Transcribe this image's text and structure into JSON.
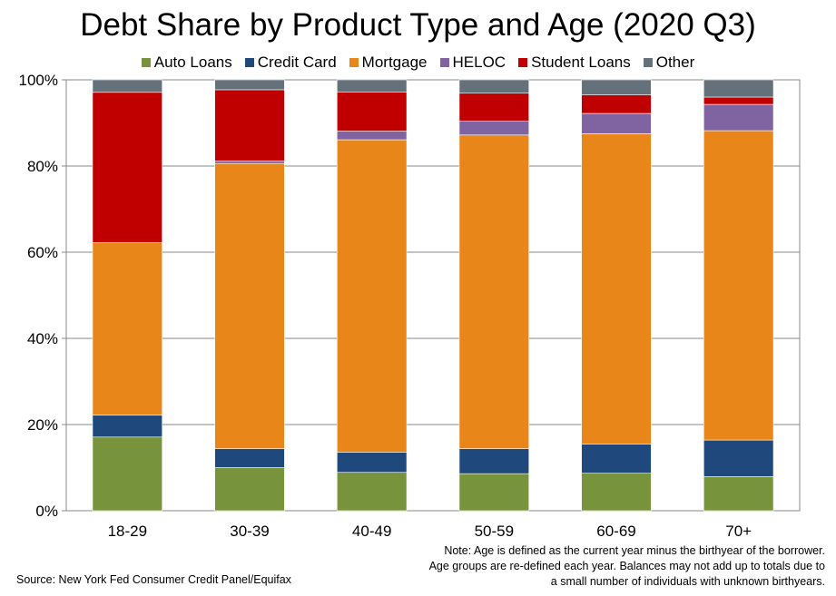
{
  "chart_data": {
    "type": "bar",
    "stacked": true,
    "title": "Debt Share by Product Type and Age (2020 Q3)",
    "xlabel": "",
    "ylabel": "",
    "ylim": [
      0,
      100
    ],
    "yticks": [
      "0%",
      "20%",
      "40%",
      "60%",
      "80%",
      "100%"
    ],
    "ytick_values": [
      0,
      20,
      40,
      60,
      80,
      100
    ],
    "grid": true,
    "legend_position": "top",
    "categories": [
      "18-29",
      "30-39",
      "40-49",
      "50-59",
      "60-69",
      "70+"
    ],
    "series": [
      {
        "name": "Auto Loans",
        "color": "#77933c",
        "values": [
          17.1,
          10.0,
          8.9,
          8.6,
          8.7,
          7.9
        ]
      },
      {
        "name": "Credit Card",
        "color": "#1f497d",
        "values": [
          5.1,
          4.4,
          4.7,
          5.8,
          6.8,
          8.5
        ]
      },
      {
        "name": "Mortgage",
        "color": "#e8861a",
        "values": [
          40.0,
          66.2,
          72.5,
          72.8,
          72.0,
          71.8
        ]
      },
      {
        "name": "HELOC",
        "color": "#8064a2",
        "values": [
          0.0,
          0.6,
          2.0,
          3.2,
          4.7,
          6.1
        ]
      },
      {
        "name": "Student Loans",
        "color": "#c00000",
        "values": [
          34.9,
          16.5,
          9.1,
          6.5,
          4.3,
          1.7
        ]
      },
      {
        "name": "Other",
        "color": "#64707a",
        "values": [
          2.9,
          2.3,
          2.8,
          3.1,
          3.5,
          4.0
        ]
      }
    ]
  },
  "footer": {
    "note": "Note: Age is defined as the current year minus the birthyear of the borrower. Age groups are re-defined each year. Balances may not add up to totals due to a small number of individuals with unknown birthyears.",
    "source": "Source: New York Fed Consumer Credit Panel/Equifax"
  }
}
